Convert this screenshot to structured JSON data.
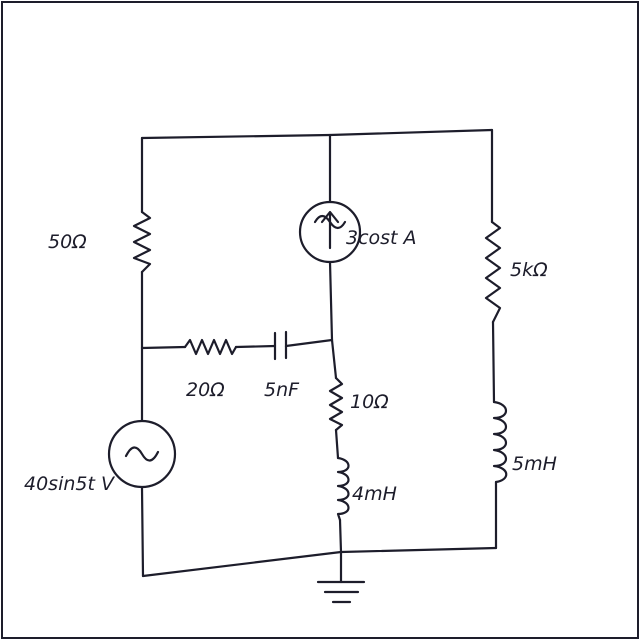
{
  "components": {
    "r_50": {
      "label": "50Ω"
    },
    "r_20": {
      "label": "20Ω"
    },
    "c_5nf": {
      "label": "5nF"
    },
    "i_source": {
      "label": "3cost A"
    },
    "r_10": {
      "label": "10Ω"
    },
    "l_4mh": {
      "label": "4mH"
    },
    "v_source": {
      "label": "40sin5t V"
    },
    "r_5k": {
      "label": "5kΩ"
    },
    "l_5mh": {
      "label": "5mH"
    }
  }
}
